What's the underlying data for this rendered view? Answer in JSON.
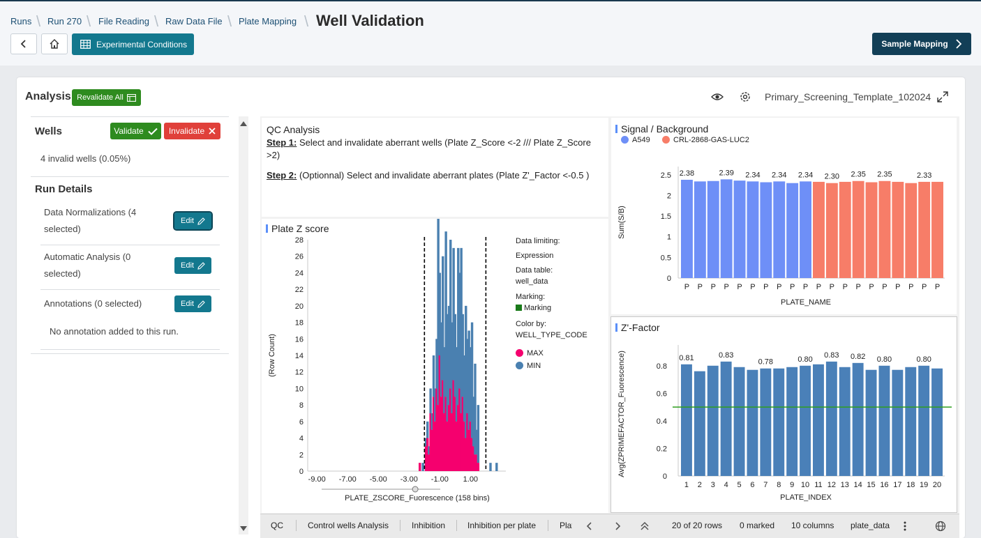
{
  "breadcrumb": [
    "Runs",
    "Run 270",
    "File Reading",
    "Raw Data File",
    "Plate Mapping"
  ],
  "page_title": "Well Validation",
  "header": {
    "experimental_conditions_label": "Experimental Conditions",
    "sample_mapping_label": "Sample Mapping"
  },
  "analysis": {
    "title": "Analysis",
    "revalidate_label": "Revalidate All",
    "template_name": "Primary_Screening_Template_102024"
  },
  "wells": {
    "title": "Wells",
    "validate_label": "Validate",
    "invalidate_label": "Invalidate",
    "invalid_summary": "4 invalid wells (0.05%)"
  },
  "run_details": {
    "title": "Run Details",
    "data_normalizations": "Data Normalizations (4 selected)",
    "automatic_analysis": "Automatic Analysis (0 selected)",
    "annotations": "Annotations (0 selected)",
    "edit_label": "Edit",
    "no_annotation": "No annotation added to this run."
  },
  "qc_text": {
    "title": "QC Analysis",
    "step1_label": "Step 1:",
    "step1_text": " Select and invalidate aberrant wells (Plate Z_Score <-2 /// Plate Z_Score >2)",
    "step2_label": "Step 2:",
    "step2_text": " (Optionnal) Select and invalidate aberrant plates (Plate Z'_Factor <-0.5 )"
  },
  "plate_z_panel": {
    "title": "Plate Z score",
    "data_limiting_label": "Data limiting:",
    "data_limiting_value": "Expression",
    "data_table_label": "Data table:",
    "data_table_value": "well_data",
    "marking_label": "Marking:",
    "marking_value": "Marking",
    "color_by_label": "Color by:",
    "color_by_value": "WELL_TYPE_CODE",
    "legend_max": "MAX",
    "legend_min": "MIN",
    "colors": {
      "max": "#f5006e",
      "min": "#4a80b0",
      "marking": "#1a7a1a"
    }
  },
  "signal_panel": {
    "title": "Signal / Background",
    "legend_a": "A549",
    "legend_b": "CRL-2868-GAS-LUC2",
    "colors": {
      "a": "#6e8ff7",
      "b": "#f77d68"
    }
  },
  "zfactor_panel": {
    "title": "Z'-Factor",
    "color": "#4a80b8",
    "line_color": "#2e9e1e"
  },
  "tabs": [
    "QC",
    "Control wells Analysis",
    "Inhibition",
    "Inhibition per plate",
    "Plat"
  ],
  "status": {
    "rows": "20 of 20 rows",
    "marked": "0 marked",
    "columns": "10 columns",
    "table": "plate_data"
  },
  "chart_data": [
    {
      "type": "bar",
      "title": "Plate Z score",
      "xlabel": "PLATE_ZSCORE_Fuorescence (158 bins)",
      "ylabel": "(Row Count)",
      "x_ticks": [
        "-9.00",
        "-7.00",
        "-5.00",
        "-3.00",
        "-1.00",
        "1.00"
      ],
      "y_ticks": [
        "0",
        "2",
        "4",
        "6",
        "8",
        "10",
        "12",
        "14",
        "16",
        "18",
        "20",
        "22",
        "24",
        "26",
        "28"
      ],
      "ylim": [
        0,
        28
      ],
      "threshold_lines": [
        -2,
        2
      ],
      "x_bins": [
        -2.3,
        -2.1,
        -1.9,
        -1.8,
        -1.7,
        -1.6,
        -1.5,
        -1.4,
        -1.3,
        -1.2,
        -1.1,
        -1.0,
        -0.9,
        -0.8,
        -0.7,
        -0.6,
        -0.5,
        -0.4,
        -0.3,
        -0.2,
        -0.1,
        0.0,
        0.1,
        0.2,
        0.3,
        0.4,
        0.5,
        0.6,
        0.7,
        0.8,
        0.9,
        1.0,
        1.1,
        1.2,
        1.3,
        1.4,
        1.5,
        2.3,
        2.7
      ],
      "series": [
        {
          "name": "MAX",
          "values": [
            1,
            0,
            3,
            4,
            2,
            7,
            5,
            9,
            6,
            10,
            8,
            14,
            9,
            11,
            7,
            9,
            6,
            8,
            10,
            7,
            11,
            9,
            6,
            8,
            10,
            7,
            9,
            6,
            4,
            7,
            5,
            6,
            4,
            3,
            2,
            2,
            1,
            0,
            0
          ]
        },
        {
          "name": "MIN",
          "values": [
            0,
            1,
            1,
            2,
            1,
            3,
            2,
            5,
            4,
            6,
            27,
            10,
            9,
            15,
            8,
            20,
            13,
            12,
            18,
            11,
            16,
            10,
            9,
            19,
            14,
            20,
            10,
            8,
            16,
            9,
            12,
            9,
            14,
            6,
            11,
            3,
            7,
            1,
            1
          ]
        }
      ]
    },
    {
      "type": "bar",
      "title": "Signal / Background",
      "xlabel": "PLATE_NAME",
      "ylabel": "Sum(S/B)",
      "y_ticks": [
        "0",
        "0.5",
        "1",
        "1.5",
        "2",
        "2.5"
      ],
      "ylim": [
        0,
        2.7
      ],
      "categories": [
        "P",
        "P",
        "P",
        "P",
        "P",
        "P",
        "P",
        "P",
        "P",
        "P",
        "P",
        "P",
        "P",
        "P",
        "P",
        "P",
        "P",
        "P",
        "P",
        "P"
      ],
      "values": [
        2.38,
        2.34,
        2.35,
        2.39,
        2.36,
        2.34,
        2.32,
        2.34,
        2.3,
        2.34,
        2.33,
        2.3,
        2.33,
        2.35,
        2.32,
        2.35,
        2.33,
        2.3,
        2.33,
        2.33
      ],
      "value_labels": [
        "2.38",
        "",
        "",
        "2.39",
        "",
        "2.34",
        "",
        "2.34",
        "",
        "2.34",
        "",
        "2.30",
        "",
        "2.35",
        "",
        "2.35",
        "",
        "",
        "2.33",
        ""
      ],
      "series_assignment": [
        "A549",
        "A549",
        "A549",
        "A549",
        "A549",
        "A549",
        "A549",
        "A549",
        "A549",
        "A549",
        "CRL-2868-GAS-LUC2",
        "CRL-2868-GAS-LUC2",
        "CRL-2868-GAS-LUC2",
        "CRL-2868-GAS-LUC2",
        "CRL-2868-GAS-LUC2",
        "CRL-2868-GAS-LUC2",
        "CRL-2868-GAS-LUC2",
        "CRL-2868-GAS-LUC2",
        "CRL-2868-GAS-LUC2",
        "CRL-2868-GAS-LUC2"
      ]
    },
    {
      "type": "bar",
      "title": "Z'-Factor",
      "xlabel": "PLATE_INDEX",
      "ylabel": "Avg(ZPRIMEFACTOR_Fuorescence)",
      "y_ticks": [
        "0",
        "0.2",
        "0.4",
        "0.6",
        "0.8"
      ],
      "ylim": [
        0,
        0.9
      ],
      "categories": [
        "1",
        "2",
        "3",
        "4",
        "5",
        "6",
        "7",
        "8",
        "9",
        "10",
        "11",
        "12",
        "13",
        "14",
        "15",
        "16",
        "17",
        "18",
        "19",
        "20"
      ],
      "values": [
        0.81,
        0.76,
        0.8,
        0.83,
        0.79,
        0.77,
        0.78,
        0.78,
        0.79,
        0.8,
        0.81,
        0.83,
        0.79,
        0.82,
        0.77,
        0.8,
        0.77,
        0.79,
        0.8,
        0.78
      ],
      "value_labels": [
        "0.81",
        "",
        "",
        "0.83",
        "",
        "",
        "0.78",
        "",
        "",
        "0.80",
        "",
        "0.83",
        "",
        "0.82",
        "",
        "0.80",
        "",
        "",
        "0.80",
        ""
      ],
      "reference_line": 0.5
    }
  ]
}
